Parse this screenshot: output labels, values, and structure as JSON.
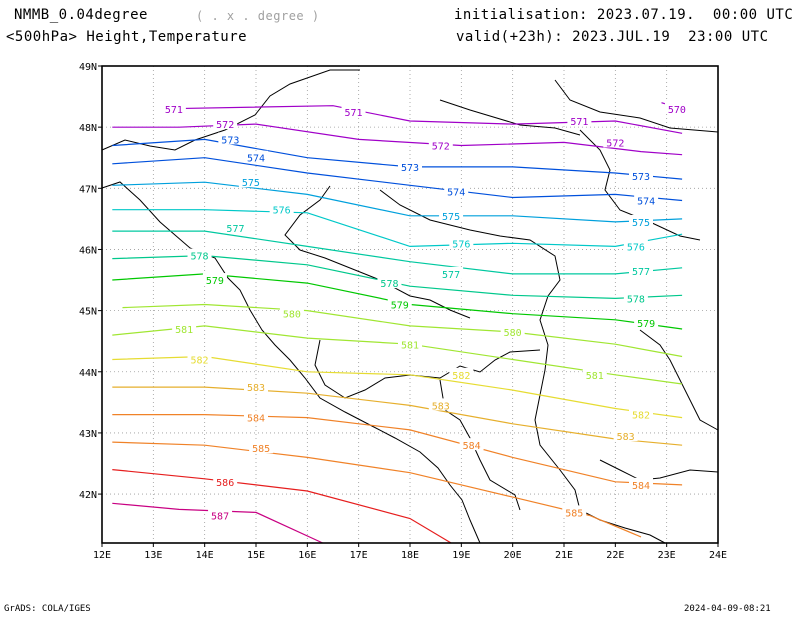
{
  "header": {
    "model": "NMMB_0.04degree",
    "degree_note": "( . x . degree )",
    "level_fields": "<500hPa> Height,Temperature",
    "init": "initialisation: 2023.07.19.  00:00 UTC",
    "valid": "valid(+23h): 2023.JUL.19  23:00 UTC"
  },
  "footer": {
    "left": "GrADS: COLA/IGES",
    "right": "2024-04-09-08:21"
  },
  "chart_data": {
    "type": "line",
    "title": "<500hPa> Height,Temperature",
    "xlim": [
      12,
      24
    ],
    "ylim": [
      41.2,
      49
    ],
    "x_ticks": [
      "12E",
      "13E",
      "14E",
      "15E",
      "16E",
      "17E",
      "18E",
      "19E",
      "20E",
      "21E",
      "22E",
      "23E",
      "24E"
    ],
    "y_ticks": [
      "42N",
      "43N",
      "44N",
      "45N",
      "46N",
      "47N",
      "48N",
      "49N"
    ],
    "grid": true,
    "series": [
      {
        "name": "570",
        "color": "#a000c8",
        "points": [
          [
            22.9,
            48.4
          ],
          [
            23.3,
            48.3
          ]
        ],
        "labels": [
          [
            23.2,
            48.3
          ]
        ]
      },
      {
        "name": "571",
        "color": "#a000c8",
        "points": [
          [
            13.2,
            48.3
          ],
          [
            16.5,
            48.35
          ],
          [
            18,
            48.1
          ],
          [
            20,
            48.05
          ],
          [
            22,
            48.1
          ],
          [
            23.3,
            47.9
          ]
        ],
        "labels": [
          [
            13.4,
            48.3
          ],
          [
            16.9,
            48.25
          ],
          [
            21.3,
            48.1
          ]
        ]
      },
      {
        "name": "572",
        "color": "#a000c8",
        "points": [
          [
            12.2,
            48.0
          ],
          [
            13.5,
            48.0
          ],
          [
            15,
            48.05
          ],
          [
            17,
            47.8
          ],
          [
            19,
            47.7
          ],
          [
            21,
            47.75
          ],
          [
            22.5,
            47.6
          ],
          [
            23.3,
            47.55
          ]
        ],
        "labels": [
          [
            14.4,
            48.05
          ],
          [
            18.6,
            47.7
          ],
          [
            22,
            47.75
          ]
        ]
      },
      {
        "name": "573",
        "color": "#0050dc",
        "points": [
          [
            12.2,
            47.7
          ],
          [
            14,
            47.8
          ],
          [
            16,
            47.5
          ],
          [
            18,
            47.35
          ],
          [
            20,
            47.35
          ],
          [
            22,
            47.25
          ],
          [
            23.3,
            47.15
          ]
        ],
        "labels": [
          [
            14.5,
            47.8
          ],
          [
            18.0,
            47.35
          ],
          [
            22.5,
            47.2
          ]
        ]
      },
      {
        "name": "574",
        "color": "#0050dc",
        "points": [
          [
            12.2,
            47.4
          ],
          [
            14,
            47.5
          ],
          [
            16,
            47.25
          ],
          [
            18,
            47.05
          ],
          [
            20,
            46.85
          ],
          [
            22,
            46.9
          ],
          [
            23.3,
            46.8
          ]
        ],
        "labels": [
          [
            15.0,
            47.5
          ],
          [
            18.9,
            46.95
          ],
          [
            22.6,
            46.8
          ]
        ]
      },
      {
        "name": "575",
        "color": "#00a0dc",
        "points": [
          [
            12.2,
            47.05
          ],
          [
            14,
            47.1
          ],
          [
            16,
            46.9
          ],
          [
            18,
            46.55
          ],
          [
            20,
            46.55
          ],
          [
            22,
            46.45
          ],
          [
            23.3,
            46.5
          ]
        ],
        "labels": [
          [
            14.9,
            47.1
          ],
          [
            18.8,
            46.55
          ],
          [
            22.5,
            46.45
          ]
        ]
      },
      {
        "name": "576",
        "color": "#00c8c8",
        "points": [
          [
            12.2,
            46.65
          ],
          [
            14,
            46.65
          ],
          [
            16,
            46.6
          ],
          [
            18,
            46.05
          ],
          [
            20,
            46.1
          ],
          [
            22,
            46.05
          ],
          [
            23.3,
            46.25
          ]
        ],
        "labels": [
          [
            15.5,
            46.65
          ],
          [
            19.0,
            46.1
          ],
          [
            22.4,
            46.05
          ]
        ]
      },
      {
        "name": "577",
        "color": "#00c8a0",
        "points": [
          [
            12.2,
            46.3
          ],
          [
            14,
            46.3
          ],
          [
            16,
            46.05
          ],
          [
            18,
            45.8
          ],
          [
            20,
            45.6
          ],
          [
            22,
            45.6
          ],
          [
            23.3,
            45.7
          ]
        ],
        "labels": [
          [
            14.6,
            46.35
          ],
          [
            18.8,
            45.6
          ],
          [
            22.5,
            45.65
          ]
        ]
      },
      {
        "name": "578",
        "color": "#00c88c",
        "points": [
          [
            12.2,
            45.85
          ],
          [
            14,
            45.9
          ],
          [
            16,
            45.75
          ],
          [
            18,
            45.4
          ],
          [
            20,
            45.25
          ],
          [
            22,
            45.2
          ],
          [
            23.3,
            45.25
          ]
        ],
        "labels": [
          [
            13.9,
            45.9
          ],
          [
            17.6,
            45.45
          ],
          [
            22.4,
            45.2
          ]
        ]
      },
      {
        "name": "579",
        "color": "#00c800",
        "points": [
          [
            12.2,
            45.5
          ],
          [
            14,
            45.6
          ],
          [
            16,
            45.45
          ],
          [
            18,
            45.1
          ],
          [
            20,
            44.95
          ],
          [
            22,
            44.85
          ],
          [
            23.3,
            44.7
          ]
        ],
        "labels": [
          [
            14.2,
            45.5
          ],
          [
            17.8,
            45.1
          ],
          [
            22.6,
            44.8
          ]
        ]
      },
      {
        "name": "580",
        "color": "#a0e632",
        "points": [
          [
            12.4,
            45.05
          ],
          [
            14,
            45.1
          ],
          [
            16,
            45.0
          ],
          [
            18,
            44.75
          ],
          [
            20,
            44.65
          ],
          [
            22,
            44.45
          ],
          [
            23.3,
            44.25
          ]
        ],
        "labels": [
          [
            15.7,
            44.95
          ],
          [
            20.0,
            44.65
          ]
        ]
      },
      {
        "name": "581",
        "color": "#a0e632",
        "points": [
          [
            12.2,
            44.6
          ],
          [
            14,
            44.75
          ],
          [
            16,
            44.55
          ],
          [
            18,
            44.45
          ],
          [
            20,
            44.2
          ],
          [
            22,
            43.95
          ],
          [
            23.3,
            43.8
          ]
        ],
        "labels": [
          [
            13.6,
            44.7
          ],
          [
            18.0,
            44.45
          ],
          [
            21.6,
            43.95
          ]
        ]
      },
      {
        "name": "582",
        "color": "#e6dc32",
        "points": [
          [
            12.2,
            44.2
          ],
          [
            14,
            44.25
          ],
          [
            16,
            44.0
          ],
          [
            18,
            43.95
          ],
          [
            20,
            43.7
          ],
          [
            22,
            43.4
          ],
          [
            23.3,
            43.25
          ]
        ],
        "labels": [
          [
            13.9,
            44.2
          ],
          [
            19.0,
            43.95
          ],
          [
            22.5,
            43.3
          ]
        ]
      },
      {
        "name": "583",
        "color": "#e6af2d",
        "points": [
          [
            12.2,
            43.75
          ],
          [
            14,
            43.75
          ],
          [
            16,
            43.65
          ],
          [
            18,
            43.45
          ],
          [
            20,
            43.15
          ],
          [
            22,
            42.9
          ],
          [
            23.3,
            42.8
          ]
        ],
        "labels": [
          [
            15.0,
            43.75
          ],
          [
            18.6,
            43.45
          ],
          [
            22.2,
            42.95
          ]
        ]
      },
      {
        "name": "584",
        "color": "#f08228",
        "points": [
          [
            12.2,
            43.3
          ],
          [
            14,
            43.3
          ],
          [
            16,
            43.25
          ],
          [
            18,
            43.05
          ],
          [
            20,
            42.6
          ],
          [
            22,
            42.2
          ],
          [
            23.3,
            42.15
          ]
        ],
        "labels": [
          [
            15.0,
            43.25
          ],
          [
            19.2,
            42.8
          ],
          [
            22.5,
            42.15
          ]
        ]
      },
      {
        "name": "585",
        "color": "#f08228",
        "points": [
          [
            12.2,
            42.85
          ],
          [
            14,
            42.8
          ],
          [
            16,
            42.6
          ],
          [
            18,
            42.35
          ],
          [
            20,
            41.95
          ],
          [
            21.5,
            41.65
          ],
          [
            22.5,
            41.3
          ]
        ],
        "labels": [
          [
            15.1,
            42.75
          ],
          [
            21.2,
            41.7
          ]
        ]
      },
      {
        "name": "586",
        "color": "#e61e1e",
        "points": [
          [
            12.2,
            42.4
          ],
          [
            14,
            42.25
          ],
          [
            16,
            42.05
          ],
          [
            18,
            41.6
          ],
          [
            18.8,
            41.2
          ]
        ],
        "labels": [
          [
            14.4,
            42.2
          ]
        ]
      },
      {
        "name": "587",
        "color": "#c80082",
        "points": [
          [
            12.2,
            41.85
          ],
          [
            13.5,
            41.75
          ],
          [
            15,
            41.7
          ],
          [
            16.3,
            41.2
          ]
        ],
        "labels": [
          [
            14.3,
            41.65
          ]
        ]
      }
    ]
  }
}
